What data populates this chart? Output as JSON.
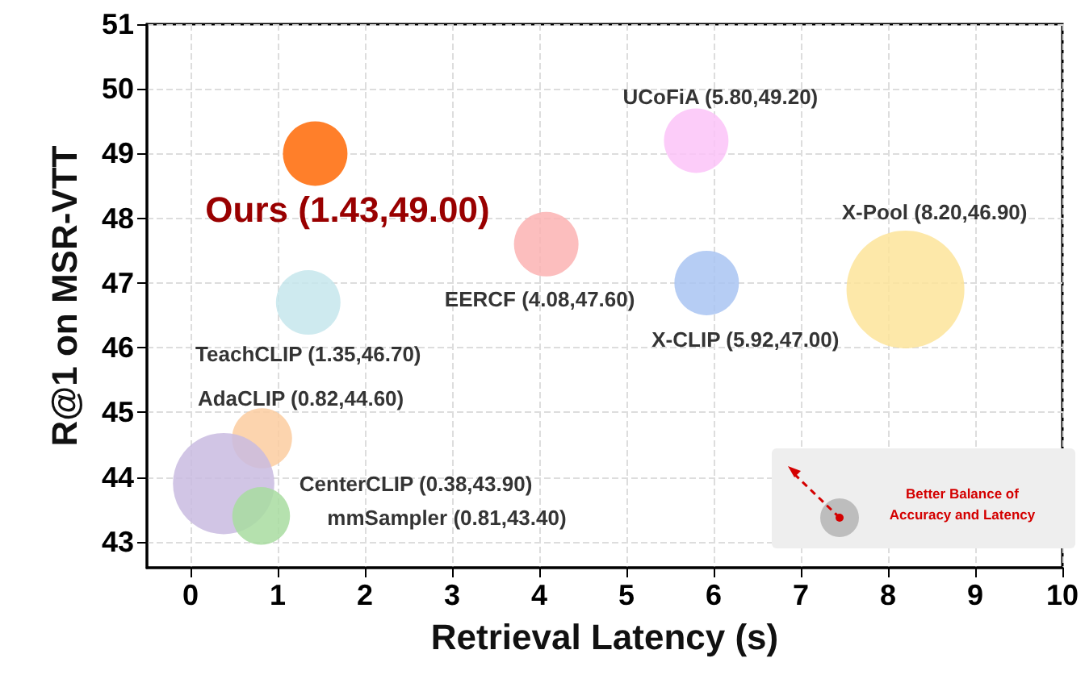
{
  "chart_data": {
    "type": "bubble",
    "xlabel": "Retrieval Latency (s)",
    "ylabel": "R@1 on MSR-VTT",
    "xlim": [
      -0.5,
      10
    ],
    "xticks": [
      0,
      1,
      2,
      3,
      4,
      5,
      6,
      7,
      8,
      9,
      10
    ],
    "ylim": [
      42.6,
      51
    ],
    "yticks": [
      43,
      44,
      45,
      46,
      47,
      48,
      49,
      50,
      51
    ],
    "grid": true,
    "legend": false,
    "annotations": [
      "Better Balance of Accuracy and Latency"
    ],
    "series": [
      {
        "name": "Ours",
        "color": "#ff7f2a",
        "x": [
          1.43
        ],
        "values": [
          49.0
        ],
        "sizes": [
          0.3
        ],
        "value_labels": [
          "(1.43,49.00)"
        ]
      },
      {
        "name": "UCoFiA",
        "color": "#fcc3f8",
        "x": [
          5.8
        ],
        "values": [
          49.2
        ],
        "sizes": [
          0.3
        ],
        "value_labels": [
          "(5.80,49.20)"
        ]
      },
      {
        "name": "EERCF",
        "color": "#fbb3b3",
        "x": [
          4.08
        ],
        "values": [
          47.6
        ],
        "sizes": [
          0.3
        ],
        "value_labels": [
          "(4.08,47.60)"
        ]
      },
      {
        "name": "X-CLIP",
        "color": "#a9c4f2",
        "x": [
          5.92
        ],
        "values": [
          47.0
        ],
        "sizes": [
          0.3
        ],
        "value_labels": [
          "(5.92,47.00)"
        ]
      },
      {
        "name": "X-Pool",
        "color": "#fde49a",
        "x": [
          8.2
        ],
        "values": [
          46.9
        ],
        "sizes": [
          1
        ],
        "value_labels": [
          "(8.20,46.90)"
        ]
      },
      {
        "name": "TeachCLIP",
        "color": "#c5e6ec",
        "x": [
          1.35
        ],
        "values": [
          46.7
        ],
        "sizes": [
          0.3
        ],
        "value_labels": [
          "(1.35,46.70)"
        ]
      },
      {
        "name": "AdaCLIP",
        "color": "#fbcda0",
        "x": [
          0.82
        ],
        "values": [
          44.6
        ],
        "sizes": [
          0.26
        ],
        "value_labels": [
          "(0.82,44.60)"
        ]
      },
      {
        "name": "CenterCLIP",
        "color": "#c9bbe0",
        "x": [
          0.38
        ],
        "values": [
          43.9
        ],
        "sizes": [
          0.74
        ],
        "value_labels": [
          "(0.38,43.90)"
        ]
      },
      {
        "name": "mmSampler",
        "color": "#a8dca0",
        "x": [
          0.81
        ],
        "values": [
          43.4
        ],
        "sizes": [
          0.24
        ],
        "value_labels": [
          "(0.81,43.40)"
        ]
      }
    ]
  }
}
